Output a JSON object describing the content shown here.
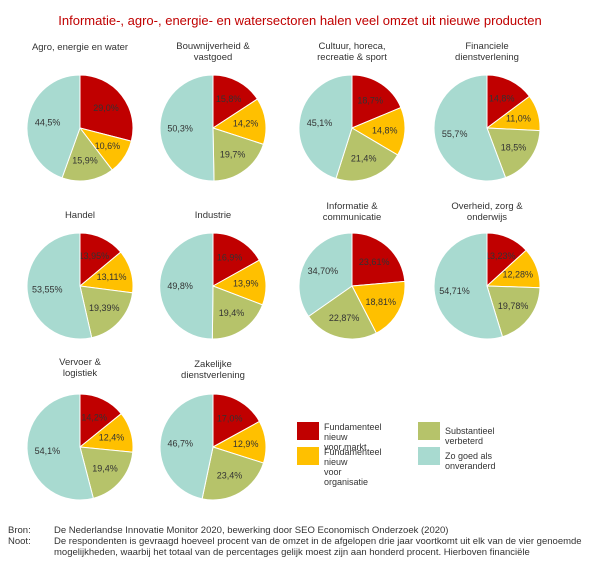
{
  "title": "Informatie-, agro-, energie- en watersectoren halen veel omzet uit nieuwe producten",
  "colors": {
    "fundamenteel_markt": "#c00000",
    "fundamenteel_organisatie": "#ffc000",
    "substantieel": "#b6c36a",
    "onveranderd": "#a8dad0",
    "title": "#c00000"
  },
  "legend": {
    "items": [
      {
        "label": "Fundamenteel nieuw\nvoor markt",
        "color": "#c00000"
      },
      {
        "label": "Substantieel verbeterd",
        "color": "#b6c36a"
      },
      {
        "label": "Fundamenteel nieuw\nvoor organisatie",
        "color": "#ffc000"
      },
      {
        "label": "Zo goed als onveranderd",
        "color": "#a8dad0"
      }
    ]
  },
  "chart_data": [
    {
      "type": "pie",
      "title": "Agro, energie en water",
      "labels": [
        "29,0%",
        "10,6%",
        "15,9%",
        "44,5%"
      ],
      "values": [
        29.0,
        10.6,
        15.9,
        44.5
      ]
    },
    {
      "type": "pie",
      "title": "Bouwnijverheid &\nvastgoed",
      "labels": [
        "15,8%",
        "14,2%",
        "19,7%",
        "50,3%"
      ],
      "values": [
        15.8,
        14.2,
        19.7,
        50.3
      ]
    },
    {
      "type": "pie",
      "title": "Cultuur, horeca,\nrecreatie & sport",
      "labels": [
        "18,7%",
        "14,8%",
        "21,4%",
        "45,1%"
      ],
      "values": [
        18.7,
        14.8,
        21.4,
        45.1
      ]
    },
    {
      "type": "pie",
      "title": "Financiele\ndienstverlening",
      "labels": [
        "14,8%",
        "11,0%",
        "18,5%",
        "55,7%"
      ],
      "values": [
        14.8,
        11.0,
        18.5,
        55.7
      ]
    },
    {
      "type": "pie",
      "title": "Handel",
      "labels": [
        "13,95%",
        "13,11%",
        "19,39%",
        "53,55%"
      ],
      "values": [
        13.95,
        13.11,
        19.39,
        53.55
      ]
    },
    {
      "type": "pie",
      "title": "Industrie",
      "labels": [
        "16,9%",
        "13,9%",
        "19,4%",
        "49,8%"
      ],
      "values": [
        16.9,
        13.9,
        19.4,
        49.8
      ]
    },
    {
      "type": "pie",
      "title": "Informatie &\ncommunicatie",
      "labels": [
        "23,61%",
        "18,81%",
        "22,87%",
        "34,70%"
      ],
      "values": [
        23.61,
        18.81,
        22.87,
        34.7
      ]
    },
    {
      "type": "pie",
      "title": "Overheid, zorg &\nonderwijs",
      "labels": [
        "13,23%",
        "12,28%",
        "19,78%",
        "54,71%"
      ],
      "values": [
        13.23,
        12.28,
        19.78,
        54.71
      ]
    },
    {
      "type": "pie",
      "title": "Vervoer &\nlogistiek",
      "labels": [
        "14,2%",
        "12,4%",
        "19,4%",
        "54,1%"
      ],
      "values": [
        14.2,
        12.4,
        19.4,
        54.1
      ]
    },
    {
      "type": "pie",
      "title": "Zakelijke\ndienstverlening",
      "labels": [
        "17,0%",
        "12,9%",
        "23,4%",
        "46,7%"
      ],
      "values": [
        17.0,
        12.9,
        23.4,
        46.7
      ]
    }
  ],
  "footer": {
    "bron_label": "Bron:",
    "bron_text": "De Nederlandse Innovatie Monitor 2020, bewerking door SEO Economisch Onderzoek (2020)",
    "noot_label": "Noot:",
    "noot_text": "De respondenten is gevraagd hoeveel procent van de omzet in de afgelopen drie jaar voortkomt uit elk van de vier genoemde mogelijkheden, waarbij het totaal van de percentages gelijk moest zijn aan honderd procent. Hierboven financiële"
  }
}
